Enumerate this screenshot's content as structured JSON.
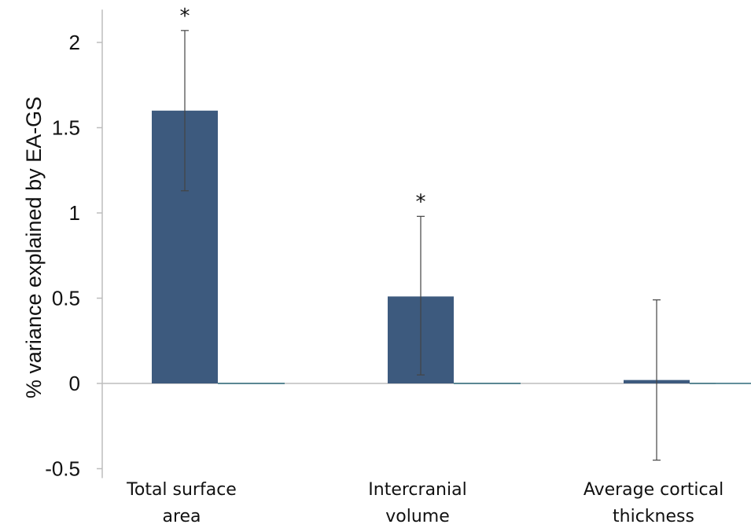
{
  "chart_data": {
    "type": "bar",
    "title": "",
    "xlabel": "",
    "ylabel": "% variance explained by EA-GS",
    "ylim": [
      -0.5,
      2.1
    ],
    "yticks": [
      2,
      1.5,
      1,
      0.5,
      0,
      -0.5
    ],
    "ytick_labels": [
      "2",
      "1.5",
      "1",
      "0.5",
      "0",
      "-0.5"
    ],
    "categories": [
      [
        "Total surface",
        "area"
      ],
      [
        "Intercranial",
        "volume"
      ],
      [
        "Average cortical",
        "thickness"
      ]
    ],
    "values": [
      1.6,
      0.51,
      0.02
    ],
    "error_low": [
      1.13,
      0.05,
      -0.45
    ],
    "error_high": [
      2.07,
      0.98,
      0.49
    ],
    "significance": [
      "*",
      "*",
      ""
    ],
    "bar_color": "#3d5a7e",
    "grid": false,
    "legend": "none"
  }
}
